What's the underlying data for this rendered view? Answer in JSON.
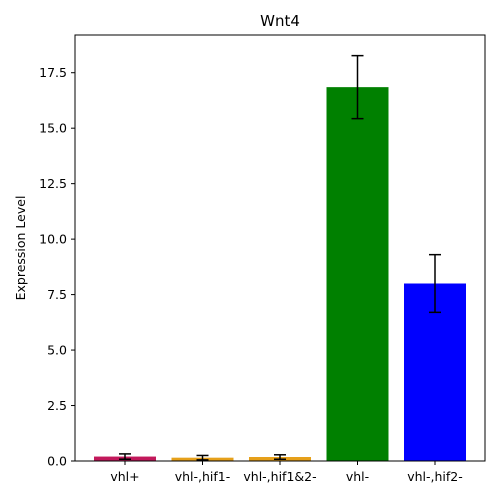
{
  "chart_data": {
    "type": "bar",
    "title": "Wnt4",
    "xlabel": "",
    "ylabel": "Expression Level",
    "categories": [
      "vhl+",
      "vhl-,hif1-",
      "vhl-,hif1&2-",
      "vhl-",
      "vhl-,hif2-"
    ],
    "values": [
      0.2,
      0.15,
      0.18,
      16.85,
      8.0
    ],
    "errors": [
      0.12,
      0.1,
      0.1,
      1.42,
      1.3
    ],
    "colors": [
      "#c2185b",
      "#e6a01a",
      "#e6a01a",
      "#008000",
      "#0000ff"
    ],
    "ylim": [
      0,
      19.2
    ],
    "yticks": [
      0.0,
      2.5,
      5.0,
      7.5,
      10.0,
      12.5,
      15.0,
      17.5
    ],
    "ytick_labels": [
      "0.0",
      "2.5",
      "5.0",
      "7.5",
      "10.0",
      "12.5",
      "15.0",
      "17.5"
    ],
    "grid": false,
    "legend": "none"
  }
}
